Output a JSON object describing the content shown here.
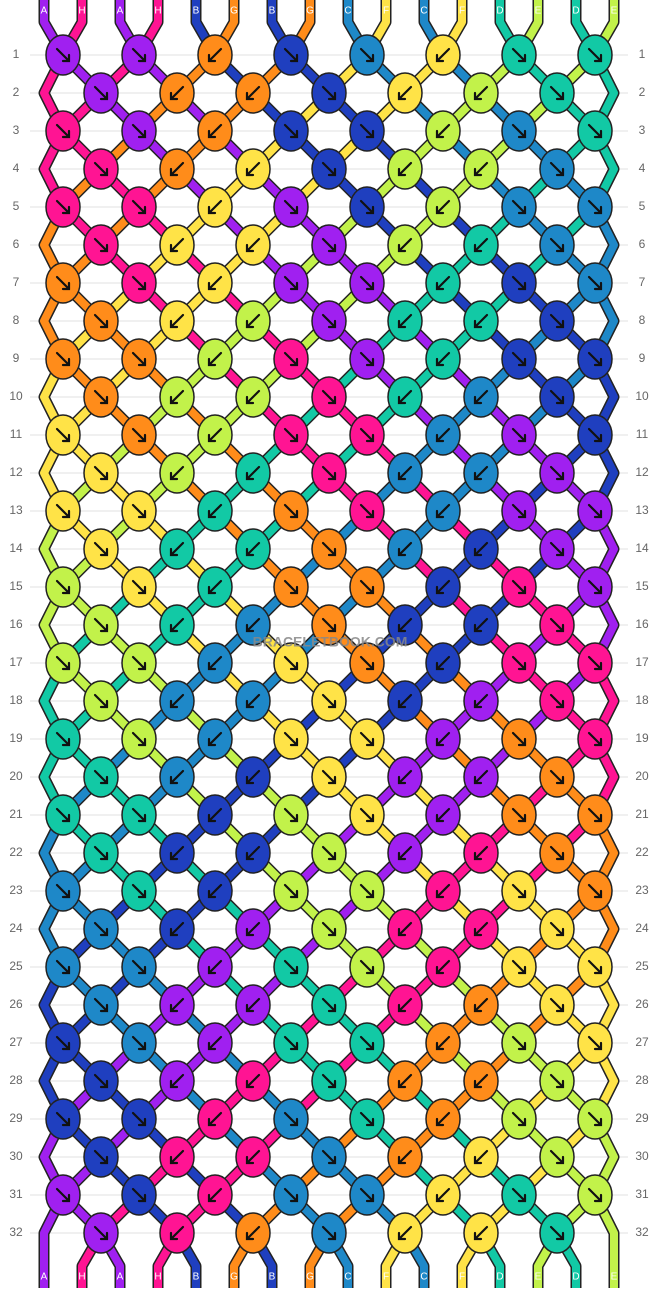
{
  "strings": [
    {
      "letter": "A",
      "color": "#a020f0"
    },
    {
      "letter": "H",
      "color": "#ff1493"
    },
    {
      "letter": "A",
      "color": "#a020f0"
    },
    {
      "letter": "H",
      "color": "#ff1493"
    },
    {
      "letter": "B",
      "color": "#1f3fbf"
    },
    {
      "letter": "G",
      "color": "#ff8c1a"
    },
    {
      "letter": "B",
      "color": "#1f3fbf"
    },
    {
      "letter": "G",
      "color": "#ff8c1a"
    },
    {
      "letter": "C",
      "color": "#1e88c8"
    },
    {
      "letter": "F",
      "color": "#ffe347"
    },
    {
      "letter": "C",
      "color": "#1e88c8"
    },
    {
      "letter": "F",
      "color": "#ffe347"
    },
    {
      "letter": "D",
      "color": "#12c9a5"
    },
    {
      "letter": "E",
      "color": "#c2f24a"
    },
    {
      "letter": "D",
      "color": "#12c9a5"
    },
    {
      "letter": "E",
      "color": "#c2f24a"
    }
  ],
  "row_numbers": [
    1,
    2,
    3,
    4,
    5,
    6,
    7,
    8,
    9,
    10,
    11,
    12,
    13,
    14,
    15,
    16,
    17,
    18,
    19,
    20,
    21,
    22,
    23,
    24,
    25,
    26,
    27,
    28,
    29,
    30,
    31,
    32
  ],
  "knot_rows": [
    "AAGBCFDD",
    "AGGBFED",
    "HAGBBECD",
    "HGFBEEC",
    "HHFABECC",
    "HFFAEDC",
    "GHFAADBC",
    "GFEADDB",
    "GGEHADBB",
    "GEEHDCB",
    "FGEHHCAB",
    "FEDHCCA",
    "FFDGHCAA",
    "FDDGCBA",
    "EFDGGBHA",
    "EDCGBBH",
    "EECFGBHH",
    "ECCFBAH",
    "DECFFAGH",
    "DCBFAAG",
    "DDBEFAGG",
    "DBBEAHG",
    "CDBEEHFG",
    "CBAEHHF",
    "CCADEHFF",
    "CAADHGF",
    "BCADDGEF",
    "BAHDGGE",
    "BBHCDGEE",
    "BHHCGFE",
    "ABHCCFDE",
    "AHGCFFD"
  ],
  "watermark": "BRACELETBOOK.COM"
}
